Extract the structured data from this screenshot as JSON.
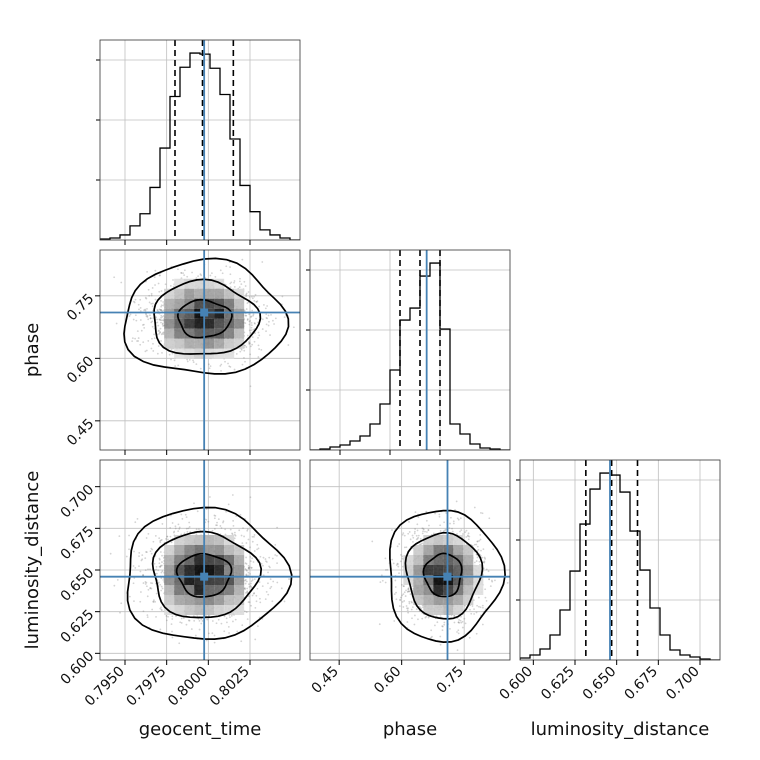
{
  "chart_data": {
    "type": "corner",
    "parameters": [
      "geocent_time",
      "phase",
      "luminosity_distance"
    ],
    "colors": {
      "truth": "#4682b4",
      "histogram": "#000000",
      "grid": "#bfbfbf"
    },
    "grid": true,
    "truths": {
      "geocent_time": 0.79975,
      "phase": 0.71,
      "luminosity_distance": 0.646
    },
    "diagonal": [
      {
        "parameter": "geocent_time",
        "range": [
          0.7935,
          0.8055
        ],
        "ticks": [
          "0.7950",
          "0.7975",
          "0.8000",
          "0.8025"
        ],
        "tick_values": [
          0.795,
          0.7975,
          0.8,
          0.8025
        ],
        "quantiles": [
          0.798,
          0.79965,
          0.8015
        ],
        "hist_edges": [
          0.7935,
          0.7941,
          0.7947,
          0.7953,
          0.7959,
          0.7965,
          0.7971,
          0.7977,
          0.7983,
          0.7989,
          0.7995,
          0.8001,
          0.8007,
          0.8013,
          0.8019,
          0.8025,
          0.8031,
          0.8037,
          0.8043,
          0.8049,
          0.8055
        ],
        "hist_counts": [
          1,
          2,
          5,
          14,
          26,
          52,
          91,
          142,
          171,
          185,
          184,
          170,
          144,
          100,
          54,
          28,
          10,
          5,
          2,
          0
        ]
      },
      {
        "parameter": "phase",
        "range": [
          0.36,
          0.96
        ],
        "ticks": [
          "0.45",
          "0.60",
          "0.75"
        ],
        "tick_values": [
          0.45,
          0.6,
          0.75
        ],
        "quantiles": [
          0.63,
          0.69,
          0.75
        ],
        "hist_edges": [
          0.36,
          0.39,
          0.42,
          0.45,
          0.48,
          0.51,
          0.54,
          0.57,
          0.6,
          0.63,
          0.66,
          0.69,
          0.72,
          0.75,
          0.78,
          0.81,
          0.84,
          0.87,
          0.9,
          0.93,
          0.96
        ],
        "hist_counts": [
          0,
          1,
          3,
          5,
          9,
          14,
          26,
          46,
          80,
          130,
          142,
          174,
          187,
          121,
          26,
          16,
          6,
          2,
          1,
          0
        ]
      },
      {
        "parameter": "luminosity_distance",
        "range": [
          0.592,
          0.712
        ],
        "ticks": [
          "0.600",
          "0.625",
          "0.650",
          "0.675",
          "0.700"
        ],
        "tick_values": [
          0.6,
          0.625,
          0.65,
          0.675,
          0.7
        ],
        "quantiles": [
          0.6315,
          0.647,
          0.6625
        ],
        "hist_edges": [
          0.592,
          0.598,
          0.604,
          0.61,
          0.616,
          0.622,
          0.628,
          0.634,
          0.64,
          0.646,
          0.652,
          0.658,
          0.664,
          0.67,
          0.676,
          0.682,
          0.688,
          0.694,
          0.7,
          0.706,
          0.712
        ],
        "hist_counts": [
          2,
          5,
          11,
          25,
          50,
          89,
          136,
          171,
          187,
          185,
          168,
          129,
          90,
          52,
          25,
          10,
          5,
          3,
          1,
          0
        ]
      }
    ],
    "pairs": [
      {
        "x": "geocent_time",
        "y": "phase",
        "center": [
          0.79975,
          0.695
        ],
        "sigma": [
          0.0016,
          0.045
        ]
      },
      {
        "x": "geocent_time",
        "y": "luminosity_distance",
        "center": [
          0.79975,
          0.647
        ],
        "sigma": [
          0.0016,
          0.013
        ]
      },
      {
        "x": "phase",
        "y": "luminosity_distance",
        "center": [
          0.7,
          0.647
        ],
        "sigma": [
          0.045,
          0.013
        ]
      }
    ],
    "offdiag_ranges": {
      "geocent_time": [
        0.7935,
        0.8055
      ],
      "phase": [
        0.38,
        0.86
      ],
      "luminosity_distance": [
        0.596,
        0.716
      ]
    },
    "offdiag_ticks": {
      "phase": {
        "labels": [
          "0.45",
          "0.60",
          "0.75"
        ],
        "values": [
          0.45,
          0.6,
          0.75
        ]
      }
    }
  }
}
